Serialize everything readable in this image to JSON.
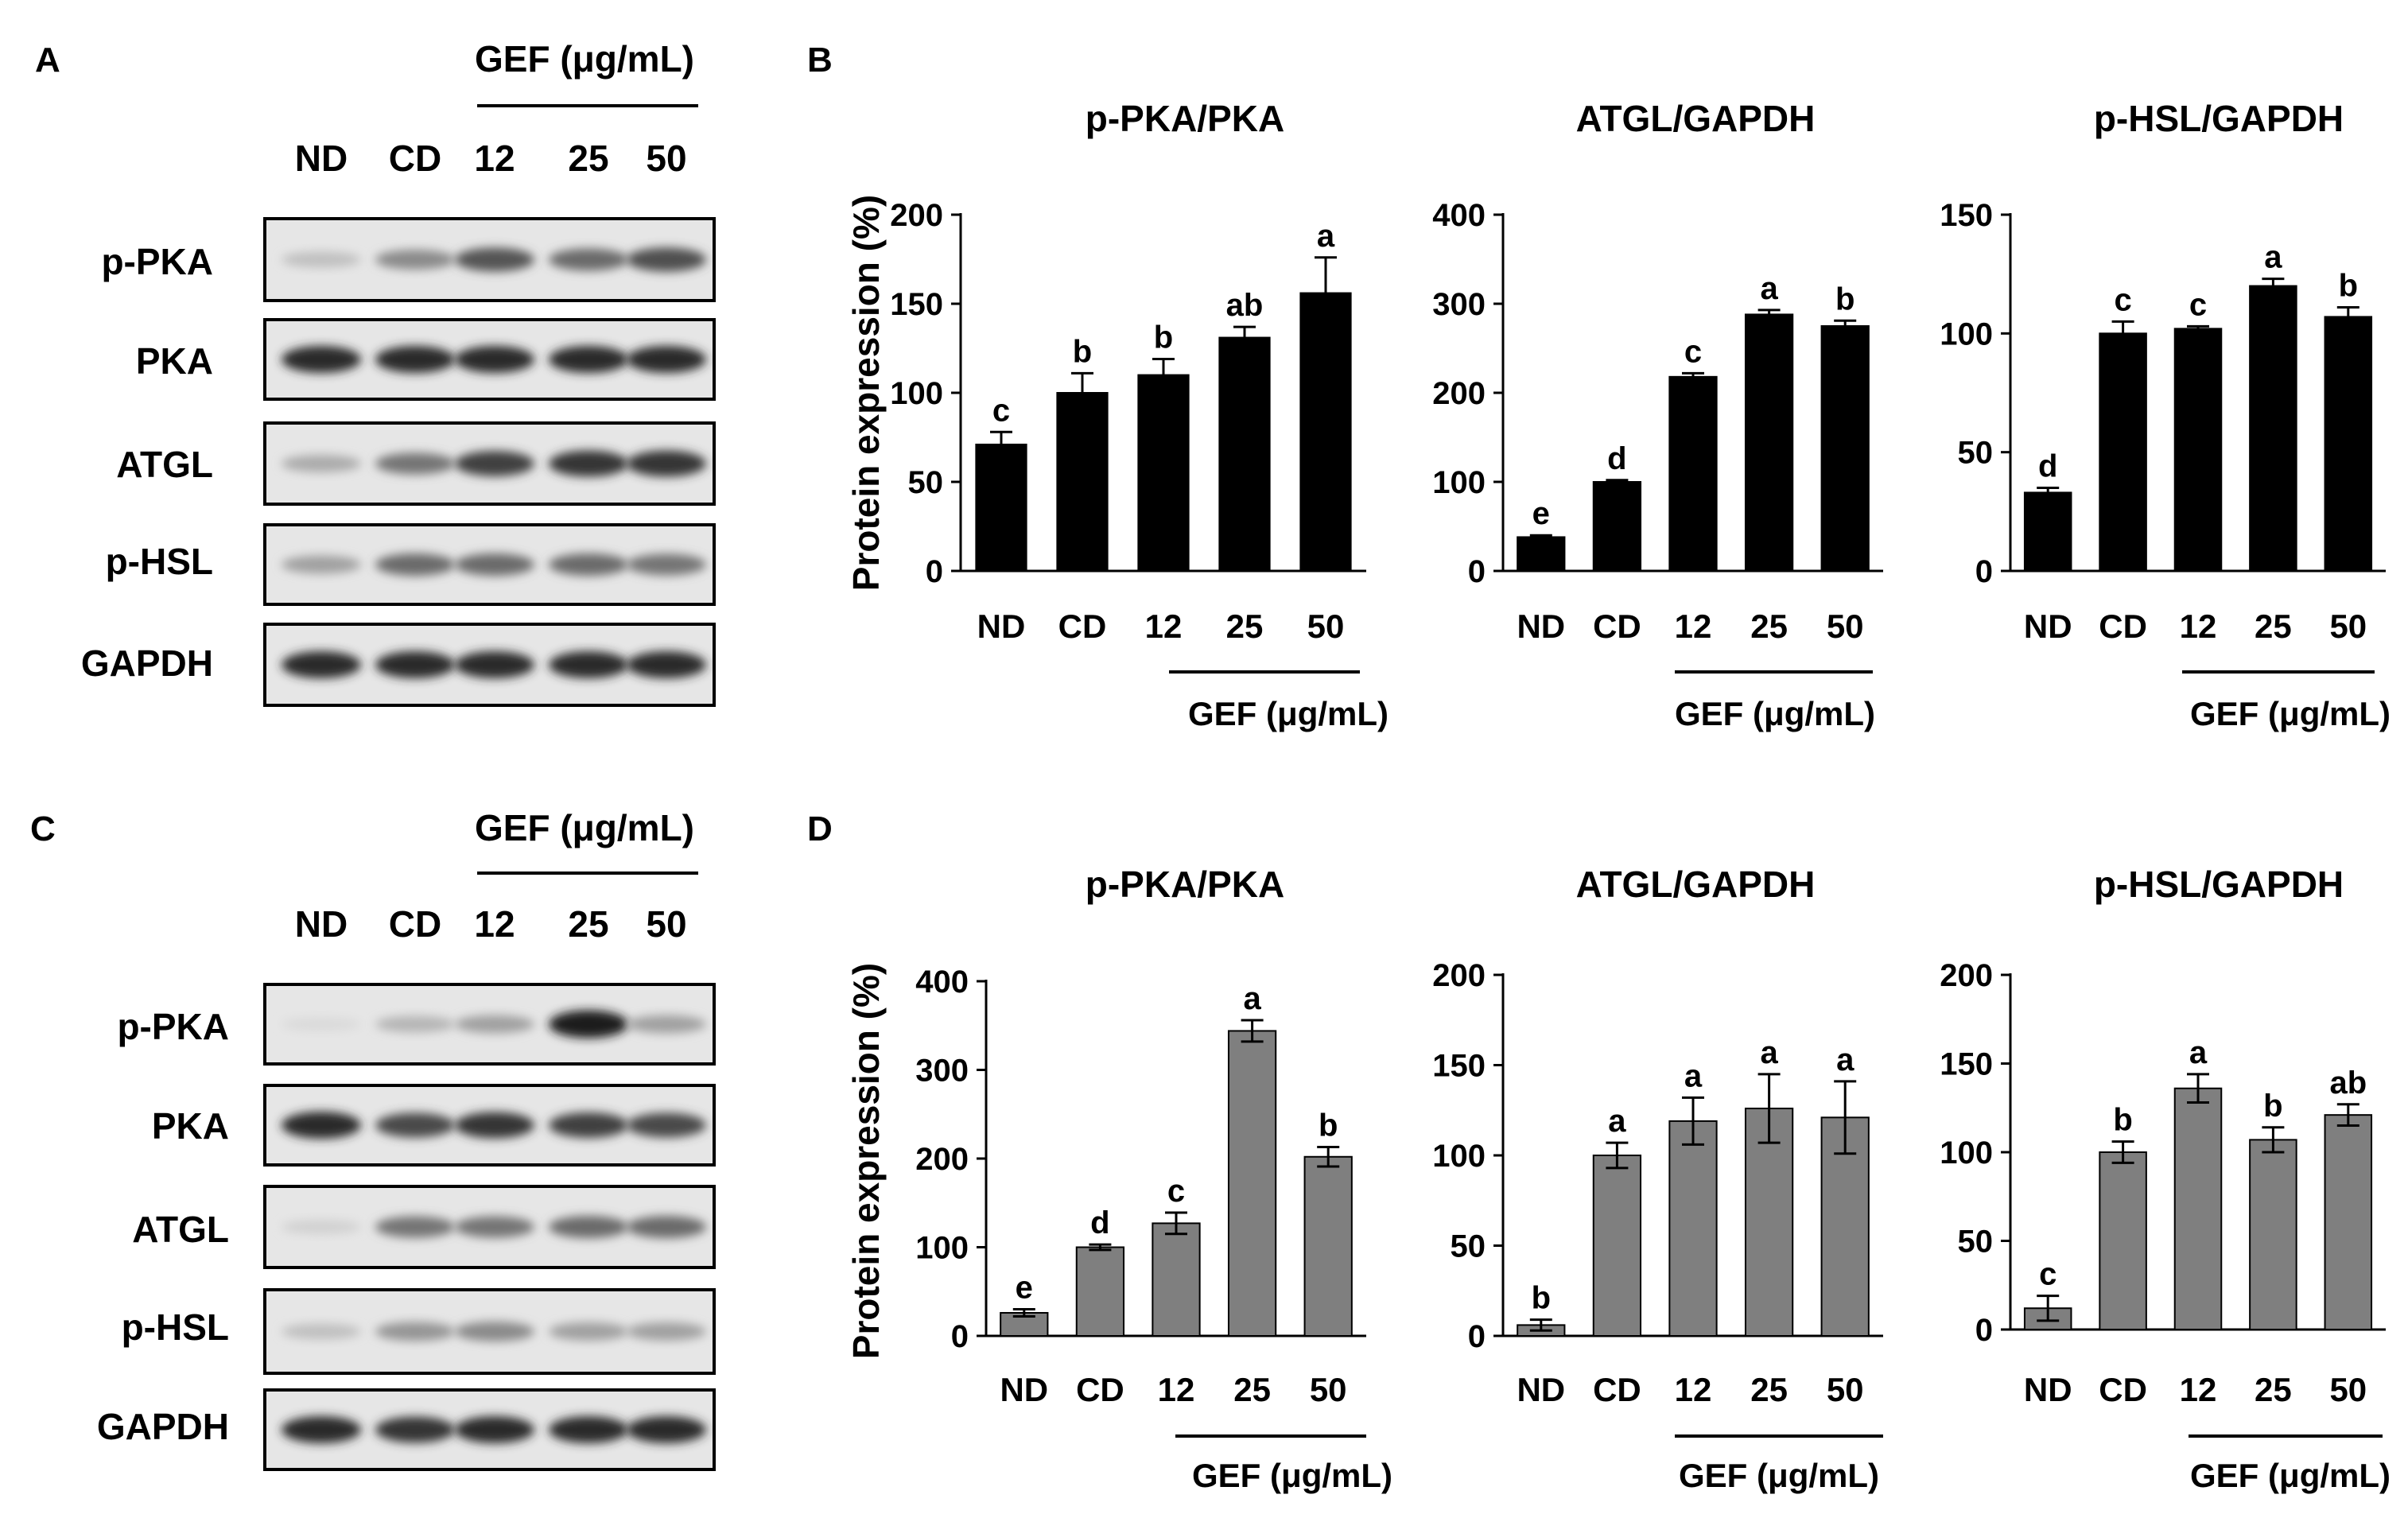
{
  "panel_labels": {
    "a": "A",
    "b": "B",
    "c": "C",
    "d": "D"
  },
  "blot_header": {
    "gef_label": "GEF (μg/mL)",
    "lanes": [
      "ND",
      "CD",
      "12",
      "25",
      "50"
    ]
  },
  "blot_rows": [
    "p-PKA",
    "PKA",
    "ATGL",
    "p-HSL",
    "GAPDH"
  ],
  "blot_band_intensity": {
    "A": [
      [
        0.2,
        0.45,
        0.7,
        0.6,
        0.72
      ],
      [
        0.9,
        0.9,
        0.9,
        0.9,
        0.9
      ],
      [
        0.3,
        0.55,
        0.8,
        0.85,
        0.85
      ],
      [
        0.35,
        0.6,
        0.6,
        0.6,
        0.55
      ],
      [
        0.9,
        0.9,
        0.9,
        0.9,
        0.9
      ]
    ],
    "C": [
      [
        0.08,
        0.25,
        0.35,
        0.95,
        0.35
      ],
      [
        0.9,
        0.75,
        0.85,
        0.8,
        0.75
      ],
      [
        0.12,
        0.55,
        0.55,
        0.6,
        0.6
      ],
      [
        0.2,
        0.4,
        0.45,
        0.35,
        0.35
      ],
      [
        0.9,
        0.85,
        0.9,
        0.9,
        0.9
      ]
    ]
  },
  "y_axis_label": "Protein expression (%)",
  "x_group_label": "GEF (μg/mL)",
  "colors": {
    "panel_b_bars": "#000000",
    "panel_d_bars": "#7f7f7f"
  },
  "chart_data": [
    {
      "id": "B1",
      "type": "bar",
      "title": "p-PKA/PKA",
      "categories": [
        "ND",
        "CD",
        "12",
        "25",
        "50"
      ],
      "values": [
        71,
        100,
        110,
        131,
        156
      ],
      "errors": [
        7,
        11,
        9,
        6,
        20
      ],
      "sig": [
        "c",
        "b",
        "b",
        "ab",
        "a"
      ],
      "ylim": [
        0,
        200
      ],
      "yticks": [
        0,
        50,
        100,
        150,
        200
      ],
      "xlabel": "GEF (μg/mL)",
      "ylabel": "Protein expression (%)"
    },
    {
      "id": "B2",
      "type": "bar",
      "title": "ATGL/GAPDH",
      "categories": [
        "ND",
        "CD",
        "12",
        "25",
        "50"
      ],
      "values": [
        38,
        100,
        218,
        288,
        275
      ],
      "errors": [
        2,
        2,
        4,
        5,
        6
      ],
      "sig": [
        "e",
        "d",
        "c",
        "a",
        "b"
      ],
      "ylim": [
        0,
        400
      ],
      "yticks": [
        0,
        100,
        200,
        300,
        400
      ],
      "xlabel": "GEF (μg/mL)",
      "ylabel": ""
    },
    {
      "id": "B3",
      "type": "bar",
      "title": "p-HSL/GAPDH",
      "categories": [
        "ND",
        "CD",
        "12",
        "25",
        "50"
      ],
      "values": [
        33,
        100,
        102,
        120,
        107
      ],
      "errors": [
        2,
        5,
        1,
        3,
        4
      ],
      "sig": [
        "d",
        "c",
        "c",
        "a",
        "b"
      ],
      "ylim": [
        0,
        150
      ],
      "yticks": [
        0,
        50,
        100,
        150
      ],
      "xlabel": "GEF (μg/mL)",
      "ylabel": ""
    },
    {
      "id": "D1",
      "type": "bar",
      "title": "p-PKA/PKA",
      "categories": [
        "ND",
        "CD",
        "12",
        "25",
        "50"
      ],
      "values": [
        26,
        100,
        127,
        344,
        202
      ],
      "errors": [
        4,
        3,
        12,
        12,
        11
      ],
      "sig": [
        "e",
        "d",
        "c",
        "a",
        "b"
      ],
      "ylim": [
        0,
        400
      ],
      "yticks": [
        0,
        100,
        200,
        300,
        400
      ],
      "xlabel": "GEF (μg/mL)",
      "ylabel": "Protein expression (%)"
    },
    {
      "id": "D2",
      "type": "bar",
      "title": "ATGL/GAPDH",
      "categories": [
        "ND",
        "CD",
        "12",
        "25",
        "50"
      ],
      "values": [
        6,
        100,
        119,
        126,
        121
      ],
      "errors": [
        3,
        7,
        13,
        19,
        20
      ],
      "sig": [
        "b",
        "a",
        "a",
        "a",
        "a"
      ],
      "ylim": [
        0,
        200
      ],
      "yticks": [
        0,
        50,
        100,
        150,
        200
      ],
      "xlabel": "GEF (μg/mL)",
      "ylabel": ""
    },
    {
      "id": "D3",
      "type": "bar",
      "title": "p-HSL/GAPDH",
      "categories": [
        "ND",
        "CD",
        "12",
        "25",
        "50"
      ],
      "values": [
        12,
        100,
        136,
        107,
        121
      ],
      "errors": [
        7,
        6,
        8,
        7,
        6
      ],
      "sig": [
        "c",
        "b",
        "a",
        "b",
        "ab"
      ],
      "ylim": [
        0,
        200
      ],
      "yticks": [
        0,
        50,
        100,
        150,
        200
      ],
      "xlabel": "GEF (μg/mL)",
      "ylabel": ""
    }
  ]
}
